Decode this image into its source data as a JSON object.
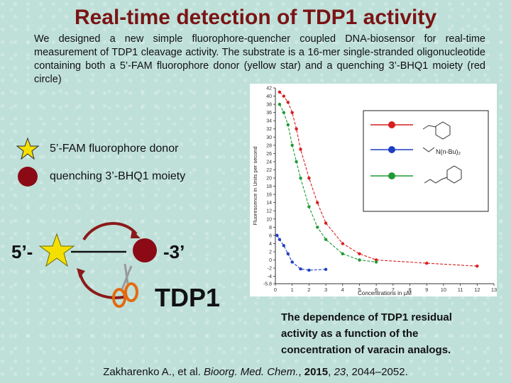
{
  "title": "Real-time detection of TDP1 activity",
  "intro": "We designed a new simple fluorophore-quencher coupled DNA-biosensor for real-time measurement of TDP1 cleavage activity. The substrate is a 16-mer single-stranded oligonucleotide containing both a 5’-FAM fluorophore donor (yellow star) and a quenching 3’-BHQ1 moiety (red circle)",
  "legend": [
    {
      "label": "5’-FAM fluorophore donor",
      "icon": "star-icon",
      "color": "#f4e000"
    },
    {
      "label": "quenching 3’-BHQ1 moiety",
      "icon": "circle-icon",
      "color": "#8b0a16"
    }
  ],
  "scheme": {
    "left": "5’-",
    "right": "-3’",
    "enzyme": "TDP1"
  },
  "caption": "The dependence of TDP1 residual activity as a function of the concentration of varacin analogs.",
  "citation": {
    "authors": "Zakharenko A., et al.",
    "journal": "Bioorg. Med. Chem.",
    "year": "2015",
    "volume": "23",
    "pages": "2044–2052."
  },
  "chart_data": {
    "type": "scatter",
    "ylabel": "Fluorescence in Units per second",
    "xlabel": "Concentrations in µM",
    "xlim": [
      0,
      13
    ],
    "ylim": [
      -5.8,
      42
    ],
    "x_ticks": [
      0,
      1,
      2,
      3,
      4,
      5,
      6,
      7,
      8,
      9,
      10,
      11,
      12,
      13
    ],
    "y_ticks": [
      42,
      40,
      38,
      36,
      34,
      32,
      30,
      28,
      26,
      24,
      22,
      20,
      18,
      16,
      14,
      12,
      10,
      8,
      6,
      4,
      2,
      0,
      -2,
      -4,
      -5.8
    ],
    "series": [
      {
        "color": "#d62020",
        "structure": "morpholine side chain",
        "x": [
          0.25,
          0.5,
          0.75,
          1.0,
          1.25,
          1.5,
          2.0,
          2.5,
          3.0,
          4.0,
          5.0,
          6.0,
          9.0,
          12.0
        ],
        "y": [
          41,
          40,
          38.5,
          36,
          32,
          27,
          20,
          14,
          9,
          4,
          1.5,
          0,
          -0.8,
          -1.5
        ]
      },
      {
        "color": "#1e3fc4",
        "structure": "N(n-Bu)2 side chain",
        "x": [
          0.1,
          0.25,
          0.5,
          0.75,
          1.0,
          1.5,
          2.0,
          3.0
        ],
        "y": [
          6,
          5,
          3.5,
          1.5,
          -0.5,
          -2.2,
          -2.5,
          -2.3
        ]
      },
      {
        "color": "#1f9a33",
        "structure": "morpholine-ethyl side chain",
        "x": [
          0.25,
          0.5,
          0.75,
          1.0,
          1.25,
          1.5,
          2.0,
          2.5,
          3.0,
          4.0,
          5.0,
          6.0
        ],
        "y": [
          38,
          36,
          33,
          28,
          24,
          20,
          13,
          8,
          5,
          1.5,
          0,
          -0.5
        ]
      }
    ]
  }
}
